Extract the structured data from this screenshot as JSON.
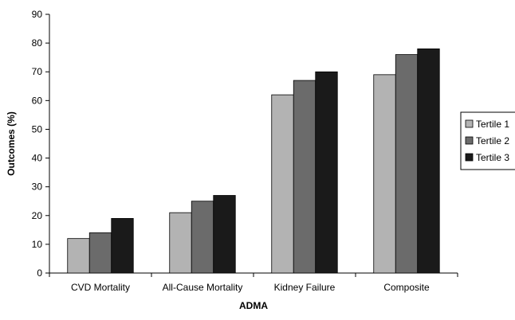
{
  "chart_data": {
    "type": "bar",
    "title": "",
    "xlabel": "ADMA",
    "ylabel": "Outcomes (%)",
    "ylim": [
      0,
      90
    ],
    "yticks": [
      0,
      10,
      20,
      30,
      40,
      50,
      60,
      70,
      80,
      90
    ],
    "categories": [
      "CVD Mortality",
      "All-Cause Mortality",
      "Kidney Failure",
      "Composite"
    ],
    "series": [
      {
        "name": "Tertile 1",
        "color": "#b3b3b3",
        "values": [
          12,
          21,
          62,
          69
        ]
      },
      {
        "name": "Tertile 2",
        "color": "#6b6b6b",
        "values": [
          14,
          25,
          67,
          76
        ]
      },
      {
        "name": "Tertile 3",
        "color": "#1a1a1a",
        "values": [
          19,
          27,
          70,
          78
        ]
      }
    ],
    "grid": false,
    "legend_position": "right"
  }
}
